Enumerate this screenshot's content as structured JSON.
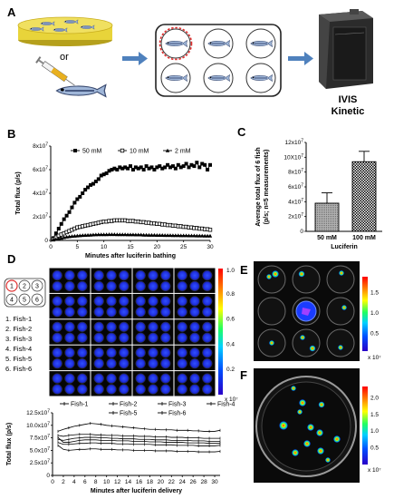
{
  "panels": {
    "A": {
      "label": "A",
      "or_text": "or",
      "instrument_line1": "IVIS",
      "instrument_line2": "Kinetic"
    },
    "B": {
      "label": "B"
    },
    "C": {
      "label": "C"
    },
    "D": {
      "label": "D",
      "fish_list": [
        "1. Fish-1",
        "2. Fish-2",
        "3. Fish-3",
        "4. Fish-4",
        "5. Fish-5",
        "6. Fish-6"
      ],
      "well_numbers": [
        "1",
        "2",
        "3",
        "4",
        "5",
        "6"
      ],
      "colorbar_top": "1.0",
      "colorbar_ticks": [
        "0.8",
        "0.6",
        "0.4",
        "0.2"
      ],
      "colorbar_unit": "x 10⁷"
    },
    "E": {
      "label": "E",
      "colorbar_ticks": [
        "1.5",
        "1.0",
        "0.5"
      ],
      "colorbar_unit": "x 10⁷"
    },
    "F": {
      "label": "F",
      "colorbar_ticks": [
        "2.0",
        "1.5",
        "1.0",
        "0.5"
      ],
      "colorbar_unit": "x 10⁷"
    }
  },
  "chart_data": [
    {
      "id": "B",
      "type": "line",
      "xlabel": "Minutes after luciferin bathing",
      "ylabel": "Total flux (p/s)",
      "xlim": [
        0,
        30
      ],
      "ylim": [
        0,
        80000000
      ],
      "xticks": [
        "0",
        "5",
        "10",
        "15",
        "20",
        "25",
        "30"
      ],
      "yticks": [
        "0",
        "2x10^7",
        "4x10^7",
        "6x10^7",
        "8x10^7"
      ],
      "legend": [
        "50 mM",
        "10 mM",
        "2 mM"
      ],
      "series": [
        {
          "name": "50 mM",
          "marker": "filled-square",
          "x": [
            0.5,
            1,
            1.5,
            2,
            2.5,
            3,
            3.5,
            4,
            4.5,
            5,
            5.5,
            6,
            6.5,
            7,
            7.5,
            8,
            8.5,
            9,
            9.5,
            10,
            10.5,
            11,
            11.5,
            12,
            12.5,
            13,
            13.5,
            14,
            14.5,
            15,
            15.5,
            16,
            16.5,
            17,
            17.5,
            18,
            18.5,
            19,
            19.5,
            20,
            20.5,
            21,
            21.5,
            22,
            22.5,
            23,
            23.5,
            24,
            24.5,
            25,
            25.5,
            26,
            26.5,
            27,
            27.5,
            28,
            28.5,
            29,
            29.5,
            30
          ],
          "y": [
            2000000,
            6000000,
            10000000,
            14000000,
            18000000,
            21000000,
            24000000,
            28000000,
            32000000,
            35000000,
            37000000,
            40000000,
            43000000,
            45000000,
            47000000,
            48000000,
            50000000,
            52000000,
            55000000,
            56000000,
            57000000,
            59000000,
            60000000,
            61000000,
            60000000,
            62000000,
            61000000,
            62000000,
            61000000,
            63000000,
            60000000,
            62000000,
            61000000,
            62000000,
            60000000,
            63000000,
            61000000,
            62000000,
            60000000,
            62000000,
            63000000,
            61000000,
            62000000,
            64000000,
            62000000,
            63000000,
            61000000,
            64000000,
            62000000,
            63000000,
            65000000,
            62000000,
            64000000,
            63000000,
            66000000,
            62000000,
            65000000,
            64000000,
            60000000,
            64000000
          ]
        },
        {
          "name": "10 mM",
          "marker": "open-square",
          "x": [
            0.5,
            1,
            1.5,
            2,
            2.5,
            3,
            3.5,
            4,
            4.5,
            5,
            5.5,
            6,
            6.5,
            7,
            7.5,
            8,
            8.5,
            9,
            9.5,
            10,
            10.5,
            11,
            11.5,
            12,
            12.5,
            13,
            13.5,
            14,
            14.5,
            15,
            15.5,
            16,
            16.5,
            17,
            17.5,
            18,
            18.5,
            19,
            19.5,
            20,
            20.5,
            21,
            21.5,
            22,
            22.5,
            23,
            23.5,
            24,
            24.5,
            25,
            25.5,
            26,
            26.5,
            27,
            27.5,
            28,
            28.5,
            29,
            29.5,
            30
          ],
          "y": [
            1000000,
            2500000,
            4000000,
            5000000,
            6000000,
            7000000,
            8000000,
            9000000,
            10000000,
            11000000,
            11500000,
            12000000,
            12500000,
            13000000,
            13500000,
            14000000,
            14500000,
            15000000,
            15500000,
            16000000,
            16000000,
            16500000,
            16500000,
            17000000,
            17000000,
            17000000,
            17000000,
            17000000,
            16500000,
            16500000,
            16500000,
            16000000,
            16000000,
            15500000,
            15500000,
            15000000,
            15000000,
            14500000,
            14500000,
            14000000,
            14000000,
            13500000,
            13500000,
            13000000,
            13000000,
            12500000,
            12500000,
            12000000,
            12000000,
            11500000,
            11500000,
            11000000,
            11000000,
            10500000,
            10500000,
            10000000,
            10000000,
            9500000,
            9500000,
            9000000
          ]
        },
        {
          "name": "2 mM",
          "marker": "filled-triangle",
          "x": [
            0.5,
            1,
            1.5,
            2,
            2.5,
            3,
            3.5,
            4,
            4.5,
            5,
            5.5,
            6,
            6.5,
            7,
            7.5,
            8,
            8.5,
            9,
            9.5,
            10,
            10.5,
            11,
            11.5,
            12,
            12.5,
            13,
            13.5,
            14,
            14.5,
            15,
            15.5,
            16,
            16.5,
            17,
            17.5,
            18,
            18.5,
            19,
            19.5,
            20,
            20.5,
            21,
            21.5,
            22,
            22.5,
            23,
            23.5,
            24,
            24.5,
            25,
            25.5,
            26,
            26.5,
            27,
            27.5,
            28,
            28.5,
            29,
            29.5,
            30
          ],
          "y": [
            500000,
            1000000,
            1500000,
            2000000,
            2500000,
            3000000,
            3300000,
            3600000,
            3800000,
            4000000,
            4200000,
            4400000,
            4500000,
            4600000,
            4700000,
            4800000,
            4900000,
            5000000,
            5000000,
            5000000,
            5000000,
            5100000,
            5100000,
            5100000,
            5000000,
            5000000,
            5000000,
            5000000,
            4900000,
            4900000,
            4900000,
            4800000,
            4800000,
            4800000,
            4700000,
            4700000,
            4600000,
            4600000,
            4600000,
            4500000,
            4500000,
            4500000,
            4400000,
            4400000,
            4400000,
            4300000,
            4300000,
            4300000,
            4200000,
            4200000,
            4200000,
            4100000,
            4100000,
            4100000,
            4000000,
            4000000,
            4000000,
            3900000,
            3900000,
            3900000
          ]
        }
      ]
    },
    {
      "id": "C",
      "type": "bar",
      "ylabel": "Average total flux of 6 fish (p/s; n=5 measurements)",
      "xlabel": "Luciferin",
      "categories": [
        "50 mM",
        "100 mM"
      ],
      "values": [
        38000000,
        94000000
      ],
      "errors": [
        14000000,
        14000000
      ],
      "ylim": [
        0,
        120000000
      ],
      "yticks": [
        "0",
        "2x10^7",
        "4x10^7",
        "6x10^7",
        "8x10^7",
        "10X10^7",
        "12x10^7"
      ]
    },
    {
      "id": "D",
      "type": "line",
      "xlabel": "Minutes after luciferin delivery",
      "ylabel": "Total flux (p/s)",
      "xlim": [
        0,
        31
      ],
      "ylim": [
        0,
        125000000
      ],
      "xticks": [
        "0",
        "2",
        "4",
        "6",
        "8",
        "10",
        "12",
        "14",
        "16",
        "18",
        "20",
        "22",
        "24",
        "26",
        "28",
        "30"
      ],
      "yticks": [
        "0",
        "2.5x10^7",
        "5.0x10^7",
        "7.5x10^7",
        "10.0x10^7",
        "12.5x10^7"
      ],
      "legend": [
        "Fish-1",
        "Fish-2",
        "Fish-3",
        "Fish-4",
        "Fish-5",
        "Fish-6"
      ],
      "series": [
        {
          "name": "Fish-1",
          "x": [
            1,
            2,
            3,
            4,
            5,
            6,
            7,
            8,
            9,
            10,
            11,
            12,
            13,
            14,
            15,
            16,
            17,
            18,
            19,
            20,
            21,
            22,
            23,
            24,
            25,
            26,
            27,
            28,
            29,
            30,
            31
          ],
          "y": [
            88000000,
            92000000,
            95000000,
            98000000,
            100000000,
            102000000,
            104000000,
            103000000,
            102000000,
            100000000,
            99000000,
            98000000,
            97000000,
            96000000,
            95000000,
            94000000,
            93000000,
            92000000,
            92000000,
            91000000,
            91000000,
            91000000,
            90000000,
            90000000,
            90000000,
            89000000,
            89000000,
            88000000,
            88000000,
            88000000,
            90000000
          ]
        },
        {
          "name": "Fish-2",
          "x": [
            1,
            2,
            3,
            4,
            5,
            6,
            7,
            8,
            9,
            10,
            11,
            12,
            13,
            14,
            15,
            16,
            17,
            18,
            19,
            20,
            21,
            22,
            23,
            24,
            25,
            26,
            27,
            28,
            29,
            30,
            31
          ],
          "y": [
            80000000,
            78000000,
            80000000,
            81000000,
            82000000,
            82000000,
            82000000,
            81000000,
            81000000,
            80000000,
            80000000,
            80000000,
            79000000,
            79000000,
            79000000,
            78000000,
            78000000,
            78000000,
            77000000,
            77000000,
            77000000,
            76000000,
            76000000,
            76000000,
            75000000,
            75000000,
            75000000,
            74000000,
            74000000,
            74000000,
            74000000
          ]
        },
        {
          "name": "Fish-3",
          "x": [
            1,
            2,
            3,
            4,
            5,
            6,
            7,
            8,
            9,
            10,
            11,
            12,
            13,
            14,
            15,
            16,
            17,
            18,
            19,
            20,
            21,
            22,
            23,
            24,
            25,
            26,
            27,
            28,
            29,
            30,
            31
          ],
          "y": [
            72000000,
            70000000,
            72000000,
            74000000,
            75000000,
            76000000,
            76000000,
            76000000,
            75000000,
            75000000,
            74000000,
            74000000,
            73000000,
            73000000,
            73000000,
            72000000,
            72000000,
            72000000,
            71000000,
            71000000,
            71000000,
            70000000,
            70000000,
            70000000,
            70000000,
            69000000,
            69000000,
            69000000,
            68000000,
            68000000,
            68000000
          ]
        },
        {
          "name": "Fish-4",
          "x": [
            1,
            2,
            3,
            4,
            5,
            6,
            7,
            8,
            9,
            10,
            11,
            12,
            13,
            14,
            15,
            16,
            17,
            18,
            19,
            20,
            21,
            22,
            23,
            24,
            25,
            26,
            27,
            28,
            29,
            30,
            31
          ],
          "y": [
            76000000,
            66000000,
            66000000,
            68000000,
            70000000,
            71000000,
            71000000,
            71000000,
            70000000,
            70000000,
            70000000,
            69000000,
            69000000,
            69000000,
            68000000,
            68000000,
            68000000,
            67000000,
            67000000,
            67000000,
            66000000,
            66000000,
            66000000,
            66000000,
            65000000,
            65000000,
            65000000,
            65000000,
            64000000,
            64000000,
            64000000
          ]
        },
        {
          "name": "Fish-5",
          "x": [
            1,
            2,
            3,
            4,
            5,
            6,
            7,
            8,
            9,
            10,
            11,
            12,
            13,
            14,
            15,
            16,
            17,
            18,
            19,
            20,
            21,
            22,
            23,
            24,
            25,
            26,
            27,
            28,
            29,
            30,
            31
          ],
          "y": [
            66000000,
            62000000,
            62000000,
            63000000,
            64000000,
            64000000,
            65000000,
            65000000,
            64000000,
            64000000,
            64000000,
            63000000,
            63000000,
            63000000,
            62000000,
            62000000,
            62000000,
            62000000,
            61000000,
            61000000,
            61000000,
            61000000,
            60000000,
            60000000,
            60000000,
            60000000,
            59000000,
            59000000,
            59000000,
            59000000,
            60000000
          ]
        },
        {
          "name": "Fish-6",
          "x": [
            1,
            2,
            3,
            4,
            5,
            6,
            7,
            8,
            9,
            10,
            11,
            12,
            13,
            14,
            15,
            16,
            17,
            18,
            19,
            20,
            21,
            22,
            23,
            24,
            25,
            26,
            27,
            28,
            29,
            30,
            31
          ],
          "y": [
            60000000,
            52000000,
            50000000,
            51000000,
            52000000,
            52000000,
            53000000,
            53000000,
            52000000,
            52000000,
            52000000,
            51000000,
            51000000,
            51000000,
            50000000,
            50000000,
            50000000,
            50000000,
            49000000,
            49000000,
            49000000,
            49000000,
            48000000,
            48000000,
            48000000,
            48000000,
            47000000,
            47000000,
            47000000,
            47000000,
            48000000
          ]
        }
      ]
    }
  ],
  "colors": {
    "arrow": "#4f81bd",
    "liquid": "#e8d43a",
    "liquid_edge": "#c9ae1e",
    "bar_50": "#9a9a9a",
    "dish_border": "#222222",
    "highlight": "#e03030",
    "imaging_bg": "#0a0a0a",
    "well_blue": "#1a3cff"
  },
  "icons": {
    "syringe": "syringe-icon",
    "fish": "zebrafish-icon",
    "instrument": "ivis-instrument-icon"
  }
}
